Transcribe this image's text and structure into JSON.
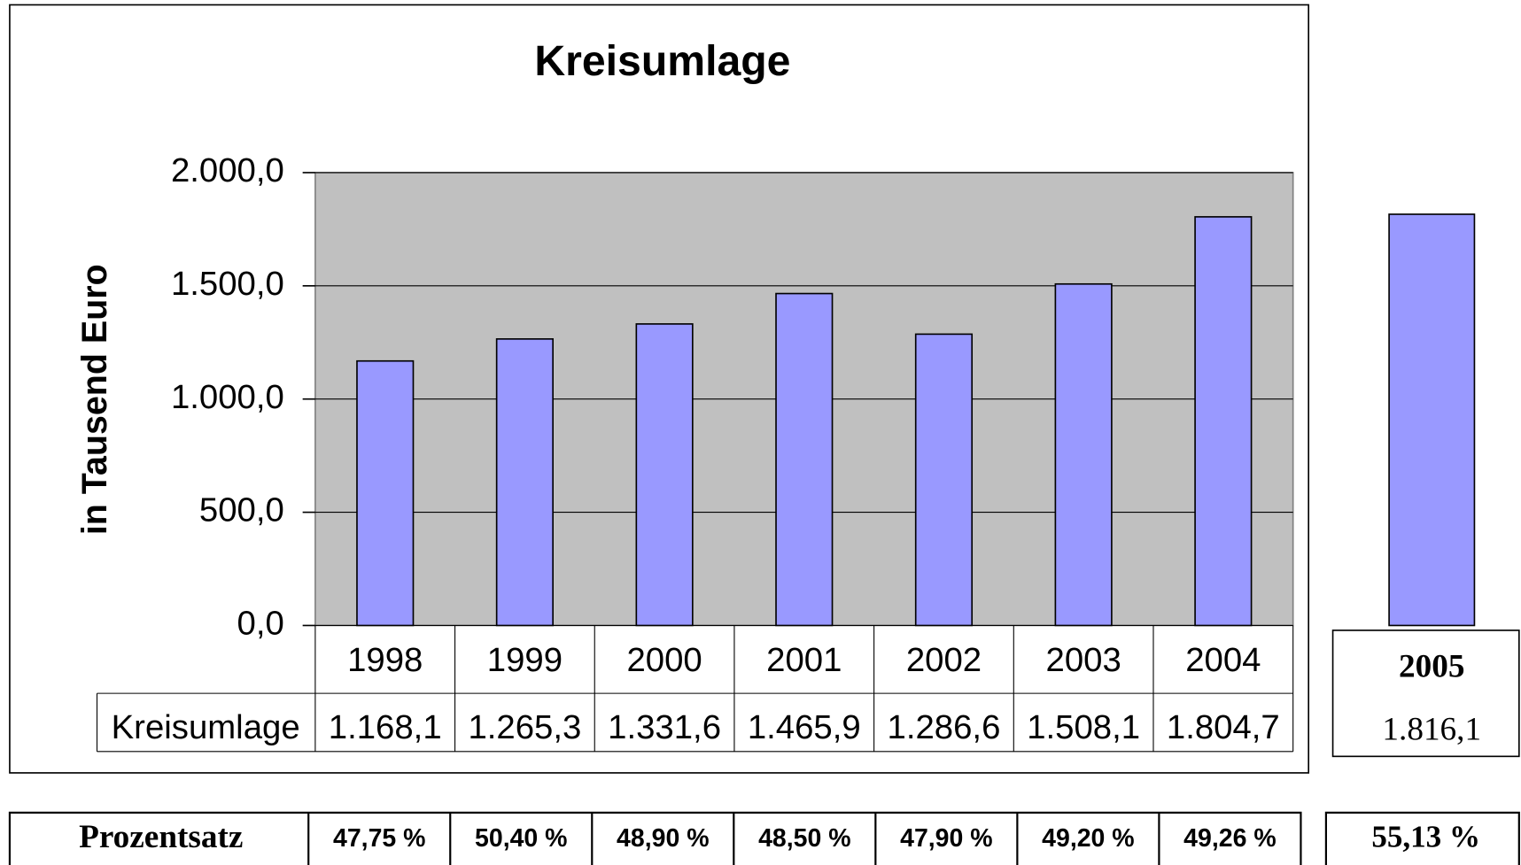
{
  "chart_data": {
    "type": "bar",
    "title": "Kreisumlage",
    "y_label": "in Tausend Euro",
    "categories": [
      "1998",
      "1999",
      "2000",
      "2001",
      "2002",
      "2003",
      "2004"
    ],
    "series": [
      {
        "name": "Kreisumlage",
        "color": "#9999ff",
        "values": [
          1168.1,
          1265.3,
          1331.6,
          1465.9,
          1286.6,
          1508.1,
          1804.7
        ],
        "value_labels": [
          "1.168,1",
          "1.265,3",
          "1.331,6",
          "1.465,9",
          "1.286,6",
          "1.508,1",
          "1.804,7"
        ]
      }
    ],
    "ylim": [
      0,
      2000
    ],
    "yticks": [
      {
        "value": 0,
        "label": "0,0"
      },
      {
        "value": 500,
        "label": "500,0"
      },
      {
        "value": 1000,
        "label": "1.000,0"
      },
      {
        "value": 1500,
        "label": "1.500,0"
      },
      {
        "value": 2000,
        "label": "2.000,0"
      }
    ],
    "grid": true,
    "plot_background": "#c0c0c0"
  },
  "forecast": {
    "category": "2005",
    "value": 1816.1,
    "value_label": "1.816,1",
    "color": "#9999ff"
  },
  "percentages": {
    "label": "Prozentsatz",
    "values": [
      "47,75 %",
      "50,40 %",
      "48,90 %",
      "48,50 %",
      "47,90 %",
      "49,20 %",
      "49,26 %"
    ],
    "forecast": "55,13 %"
  }
}
